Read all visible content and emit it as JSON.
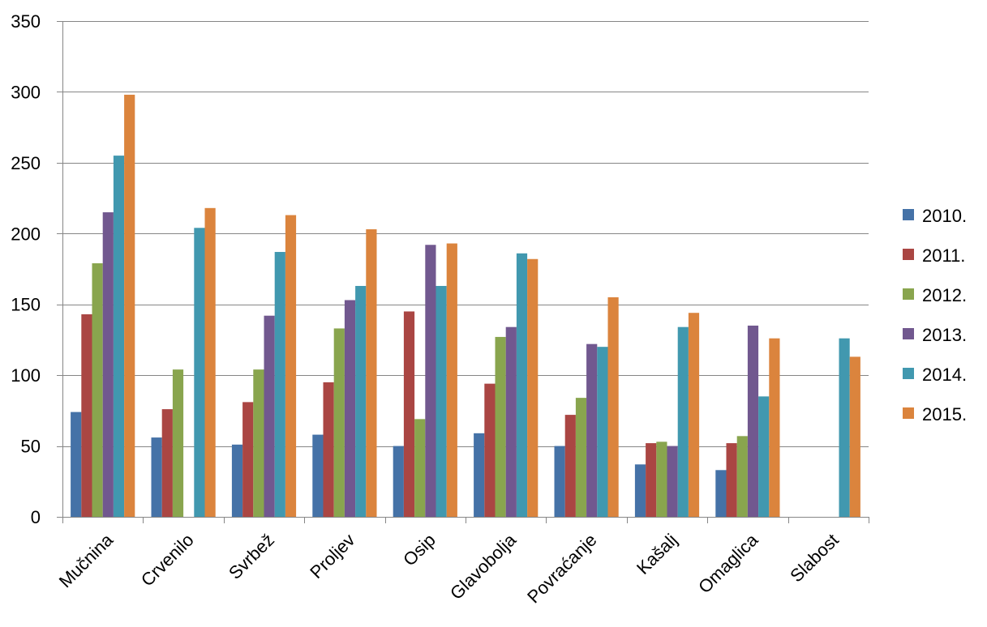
{
  "chart_data": {
    "type": "bar",
    "categories": [
      "Mučnina",
      "Crvenilo",
      "Svrbež",
      "Proljev",
      "Osip",
      "Glavobolja",
      "Povraćanje",
      "Kašalj",
      "Omaglica",
      "Slabost"
    ],
    "series": [
      {
        "name": "2010.",
        "color": "#4572A7",
        "values": [
          74,
          56,
          51,
          58,
          50,
          59,
          50,
          37,
          33,
          0
        ]
      },
      {
        "name": "2011.",
        "color": "#AA4643",
        "values": [
          143,
          76,
          81,
          95,
          145,
          94,
          72,
          52,
          52,
          0
        ]
      },
      {
        "name": "2012.",
        "color": "#89A54E",
        "values": [
          179,
          104,
          104,
          133,
          69,
          127,
          84,
          53,
          57,
          0
        ]
      },
      {
        "name": "2013.",
        "color": "#71588F",
        "values": [
          215,
          0,
          142,
          153,
          192,
          134,
          122,
          50,
          135,
          0
        ]
      },
      {
        "name": "2014.",
        "color": "#4198AF",
        "values": [
          255,
          204,
          187,
          163,
          163,
          186,
          120,
          134,
          85,
          126
        ]
      },
      {
        "name": "2015.",
        "color": "#DB843D",
        "values": [
          298,
          218,
          213,
          203,
          193,
          182,
          155,
          144,
          126,
          113
        ]
      }
    ],
    "ylim": [
      0,
      350
    ],
    "yticks": [
      0,
      50,
      100,
      150,
      200,
      250,
      300,
      350
    ],
    "grid": true,
    "legend": "right"
  }
}
